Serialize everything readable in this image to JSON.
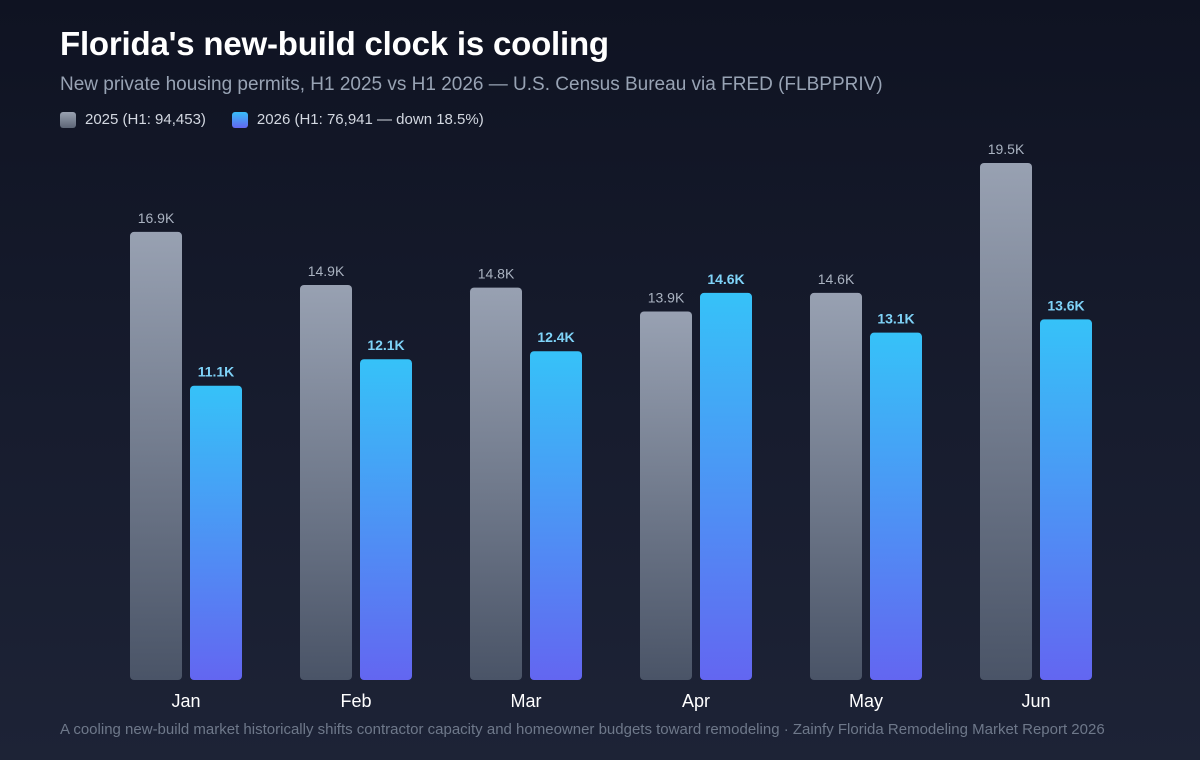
{
  "title": "Florida's new-build clock is cooling",
  "subtitle": "New private housing permits, H1 2025 vs H1 2026 — U.S. Census Bureau via FRED (FLBPPRIV)",
  "legend": [
    {
      "label": "2025 (H1: 94,453)",
      "color": "#8b94a3"
    },
    {
      "label": "2026 (H1: 76,941 — down 18.5%)",
      "color": "#5a8dfa"
    }
  ],
  "footer": "A cooling new-build market historically shifts contractor capacity and homeowner budgets toward remodeling · Zainfy Florida Remodeling Market Report 2026",
  "colors": {
    "s2025_top": "#98a1b2",
    "s2025_bottom": "#4a5467",
    "s2026_top": "#36c2f8",
    "s2026_bottom": "#6366f1",
    "label_2025": "#aab3c1",
    "label_2026": "#7fd3f8",
    "axis_label": "#ffffff"
  },
  "chart_data": {
    "type": "bar",
    "categories": [
      "Jan",
      "Feb",
      "Mar",
      "Apr",
      "May",
      "Jun"
    ],
    "series": [
      {
        "name": "2025 (H1: 94,453)",
        "values": [
          16900,
          14900,
          14800,
          13900,
          14600,
          19500
        ],
        "labels": [
          "16.9K",
          "14.9K",
          "14.8K",
          "13.9K",
          "14.6K",
          "19.5K"
        ]
      },
      {
        "name": "2026 (H1: 76,941 — down 18.5%)",
        "values": [
          11100,
          12100,
          12400,
          14600,
          13100,
          13600
        ],
        "labels": [
          "11.1K",
          "12.1K",
          "12.4K",
          "14.6K",
          "13.1K",
          "13.6K"
        ]
      }
    ],
    "ylim": [
      0,
      19500
    ],
    "grid": false,
    "legend_position": "top-left"
  }
}
